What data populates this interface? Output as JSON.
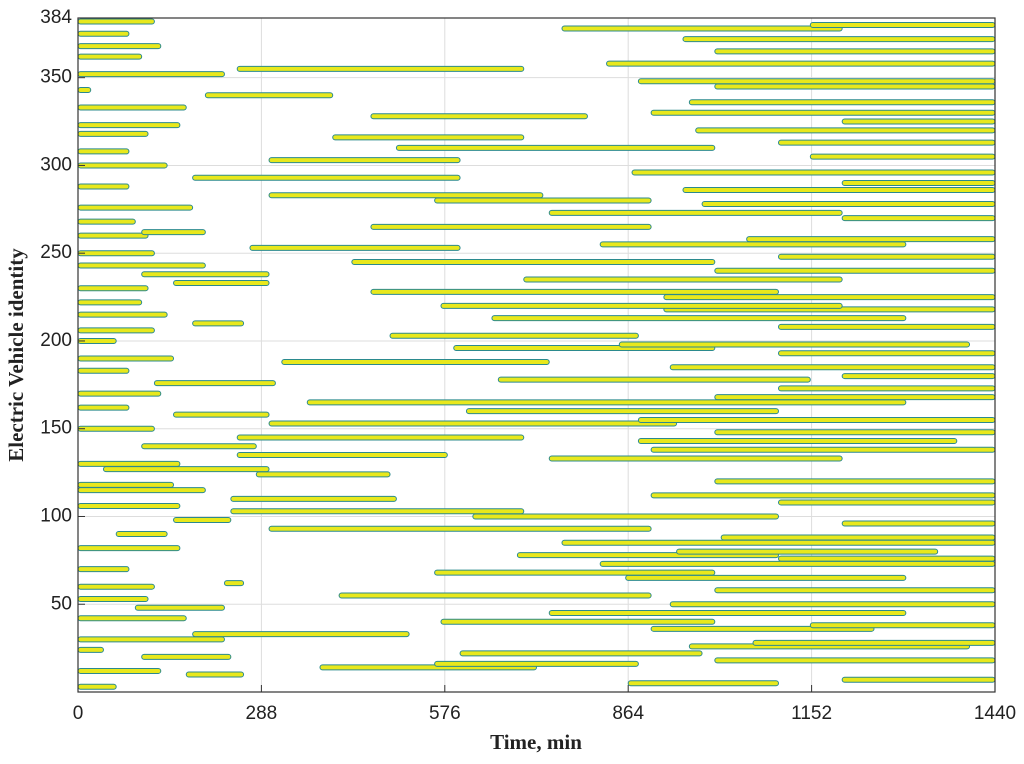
{
  "chart_data": {
    "type": "range",
    "xlabel": "Time, min",
    "ylabel": "Electric Vehicle identity",
    "xlim": [
      0,
      1440
    ],
    "xticks": [
      0,
      288,
      576,
      864,
      1152,
      1440
    ],
    "ylim": [
      0,
      384
    ],
    "yticks": [
      50,
      100,
      150,
      200,
      250,
      300,
      350,
      384
    ],
    "grid": true,
    "color": "#e8e81c",
    "edge_color": "#2b8a8e",
    "intervals": [
      [
        3,
        0,
        60
      ],
      [
        5,
        864,
        1100
      ],
      [
        7,
        1200,
        1440
      ],
      [
        10,
        170,
        260
      ],
      [
        12,
        0,
        130
      ],
      [
        14,
        380,
        720
      ],
      [
        16,
        560,
        880
      ],
      [
        18,
        1000,
        1440
      ],
      [
        20,
        100,
        240
      ],
      [
        22,
        600,
        980
      ],
      [
        24,
        0,
        40
      ],
      [
        26,
        960,
        1400
      ],
      [
        28,
        1060,
        1440
      ],
      [
        30,
        0,
        230
      ],
      [
        33,
        180,
        520
      ],
      [
        36,
        900,
        1250
      ],
      [
        38,
        1150,
        1440
      ],
      [
        40,
        570,
        1000
      ],
      [
        42,
        0,
        170
      ],
      [
        45,
        740,
        1300
      ],
      [
        48,
        90,
        230
      ],
      [
        50,
        930,
        1440
      ],
      [
        53,
        0,
        110
      ],
      [
        55,
        410,
        900
      ],
      [
        58,
        1000,
        1440
      ],
      [
        60,
        0,
        120
      ],
      [
        62,
        230,
        260
      ],
      [
        65,
        860,
        1300
      ],
      [
        68,
        560,
        1000
      ],
      [
        70,
        0,
        80
      ],
      [
        73,
        820,
        1440
      ],
      [
        76,
        1100,
        1440
      ],
      [
        78,
        690,
        1100
      ],
      [
        80,
        940,
        1350
      ],
      [
        82,
        0,
        160
      ],
      [
        85,
        760,
        1440
      ],
      [
        88,
        1010,
        1440
      ],
      [
        90,
        60,
        140
      ],
      [
        93,
        300,
        900
      ],
      [
        96,
        1200,
        1440
      ],
      [
        98,
        150,
        240
      ],
      [
        100,
        620,
        1100
      ],
      [
        103,
        240,
        700
      ],
      [
        106,
        0,
        160
      ],
      [
        108,
        1100,
        1440
      ],
      [
        110,
        240,
        500
      ],
      [
        112,
        900,
        1440
      ],
      [
        115,
        0,
        200
      ],
      [
        118,
        0,
        150
      ],
      [
        120,
        1000,
        1440
      ],
      [
        124,
        280,
        490
      ],
      [
        127,
        40,
        300
      ],
      [
        130,
        0,
        160
      ],
      [
        133,
        740,
        1200
      ],
      [
        135,
        250,
        580
      ],
      [
        138,
        900,
        1440
      ],
      [
        140,
        100,
        280
      ],
      [
        143,
        880,
        1380
      ],
      [
        145,
        250,
        700
      ],
      [
        148,
        1000,
        1440
      ],
      [
        150,
        0,
        120
      ],
      [
        153,
        300,
        940
      ],
      [
        155,
        880,
        1440
      ],
      [
        158,
        150,
        300
      ],
      [
        160,
        610,
        1100
      ],
      [
        162,
        0,
        80
      ],
      [
        165,
        360,
        1300
      ],
      [
        168,
        1000,
        1440
      ],
      [
        170,
        0,
        130
      ],
      [
        173,
        1100,
        1440
      ],
      [
        176,
        120,
        310
      ],
      [
        178,
        660,
        1150
      ],
      [
        180,
        1200,
        1440
      ],
      [
        183,
        0,
        80
      ],
      [
        185,
        930,
        1440
      ],
      [
        188,
        320,
        740
      ],
      [
        190,
        0,
        150
      ],
      [
        193,
        1100,
        1440
      ],
      [
        196,
        590,
        1000
      ],
      [
        198,
        850,
        1400
      ],
      [
        200,
        0,
        60
      ],
      [
        203,
        490,
        880
      ],
      [
        206,
        0,
        120
      ],
      [
        208,
        1100,
        1440
      ],
      [
        210,
        180,
        260
      ],
      [
        213,
        650,
        1300
      ],
      [
        215,
        0,
        140
      ],
      [
        218,
        920,
        1440
      ],
      [
        220,
        570,
        1200
      ],
      [
        222,
        0,
        100
      ],
      [
        225,
        920,
        1440
      ],
      [
        228,
        460,
        1100
      ],
      [
        230,
        0,
        110
      ],
      [
        233,
        150,
        300
      ],
      [
        235,
        700,
        1200
      ],
      [
        238,
        100,
        300
      ],
      [
        240,
        1000,
        1440
      ],
      [
        243,
        0,
        200
      ],
      [
        245,
        430,
        1000
      ],
      [
        248,
        1100,
        1440
      ],
      [
        250,
        0,
        120
      ],
      [
        253,
        270,
        600
      ],
      [
        255,
        820,
        1300
      ],
      [
        258,
        1050,
        1440
      ],
      [
        260,
        0,
        110
      ],
      [
        262,
        100,
        200
      ],
      [
        265,
        460,
        900
      ],
      [
        268,
        0,
        90
      ],
      [
        270,
        1200,
        1440
      ],
      [
        273,
        740,
        1200
      ],
      [
        276,
        0,
        180
      ],
      [
        278,
        980,
        1440
      ],
      [
        280,
        560,
        900
      ],
      [
        283,
        300,
        730
      ],
      [
        286,
        950,
        1440
      ],
      [
        288,
        0,
        80
      ],
      [
        290,
        1200,
        1440
      ],
      [
        293,
        180,
        600
      ],
      [
        296,
        870,
        1440
      ],
      [
        300,
        0,
        140
      ],
      [
        303,
        300,
        600
      ],
      [
        305,
        1150,
        1440
      ],
      [
        308,
        0,
        80
      ],
      [
        310,
        500,
        1000
      ],
      [
        313,
        1100,
        1440
      ],
      [
        316,
        400,
        700
      ],
      [
        318,
        0,
        110
      ],
      [
        320,
        970,
        1440
      ],
      [
        323,
        0,
        160
      ],
      [
        325,
        1200,
        1440
      ],
      [
        328,
        460,
        800
      ],
      [
        330,
        900,
        1440
      ],
      [
        333,
        0,
        170
      ],
      [
        336,
        960,
        1440
      ],
      [
        340,
        200,
        400
      ],
      [
        343,
        0,
        20
      ],
      [
        345,
        1000,
        1440
      ],
      [
        348,
        880,
        1440
      ],
      [
        352,
        0,
        230
      ],
      [
        355,
        250,
        700
      ],
      [
        358,
        830,
        1440
      ],
      [
        362,
        0,
        100
      ],
      [
        365,
        1000,
        1440
      ],
      [
        368,
        0,
        130
      ],
      [
        372,
        950,
        1440
      ],
      [
        375,
        0,
        80
      ],
      [
        378,
        760,
        1200
      ],
      [
        380,
        1150,
        1440
      ],
      [
        382,
        0,
        120
      ]
    ]
  }
}
